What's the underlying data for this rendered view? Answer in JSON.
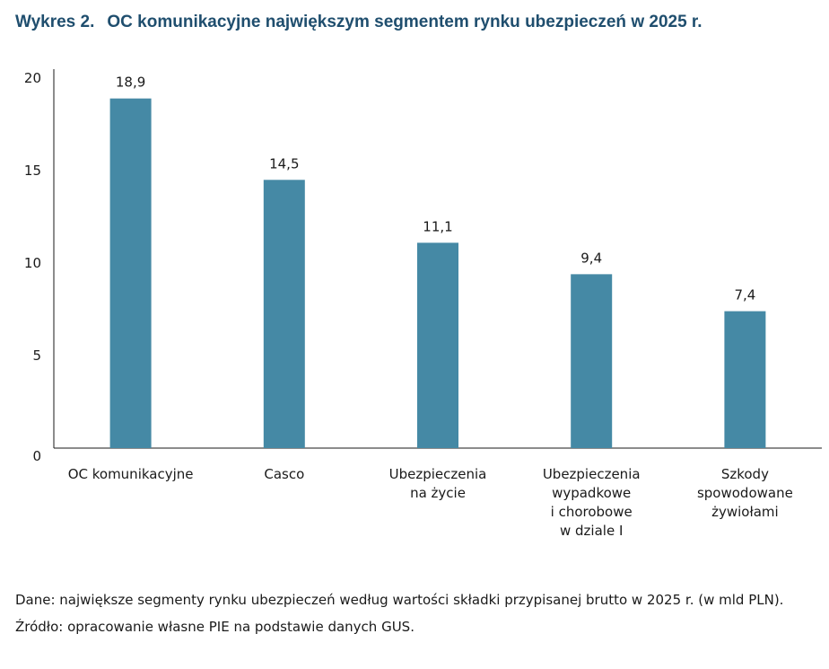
{
  "title": {
    "prefix": "Wykres 2.",
    "text": "OC komunikacyjne największym segmentem rynku ubezpieczeń w 2025 r."
  },
  "chart_data": {
    "type": "bar",
    "categories": [
      [
        "OC komunikacyjne"
      ],
      [
        "Casco"
      ],
      [
        "Ubezpieczenia",
        "na życie"
      ],
      [
        "Ubezpieczenia",
        "wypadkowe",
        "i chorobowe",
        "w dziale I"
      ],
      [
        "Szkody",
        "spowodowane",
        "żywiołami"
      ]
    ],
    "values": [
      18.9,
      14.5,
      11.1,
      9.4,
      7.4
    ],
    "value_labels": [
      "18,9",
      "14,5",
      "11,1",
      "9,4",
      "7,4"
    ],
    "ylim": [
      0,
      20
    ],
    "yticks": [
      0,
      5,
      10,
      15,
      20
    ],
    "grid": false,
    "bar_color": "#4589a5"
  },
  "notes": {
    "data": "Dane: największe segmenty rynku ubezpieczeń według wartości składki przypisanej brutto w 2025 r. (w mld PLN).",
    "source": "Źródło: opracowanie własne PIE na podstawie danych GUS."
  }
}
